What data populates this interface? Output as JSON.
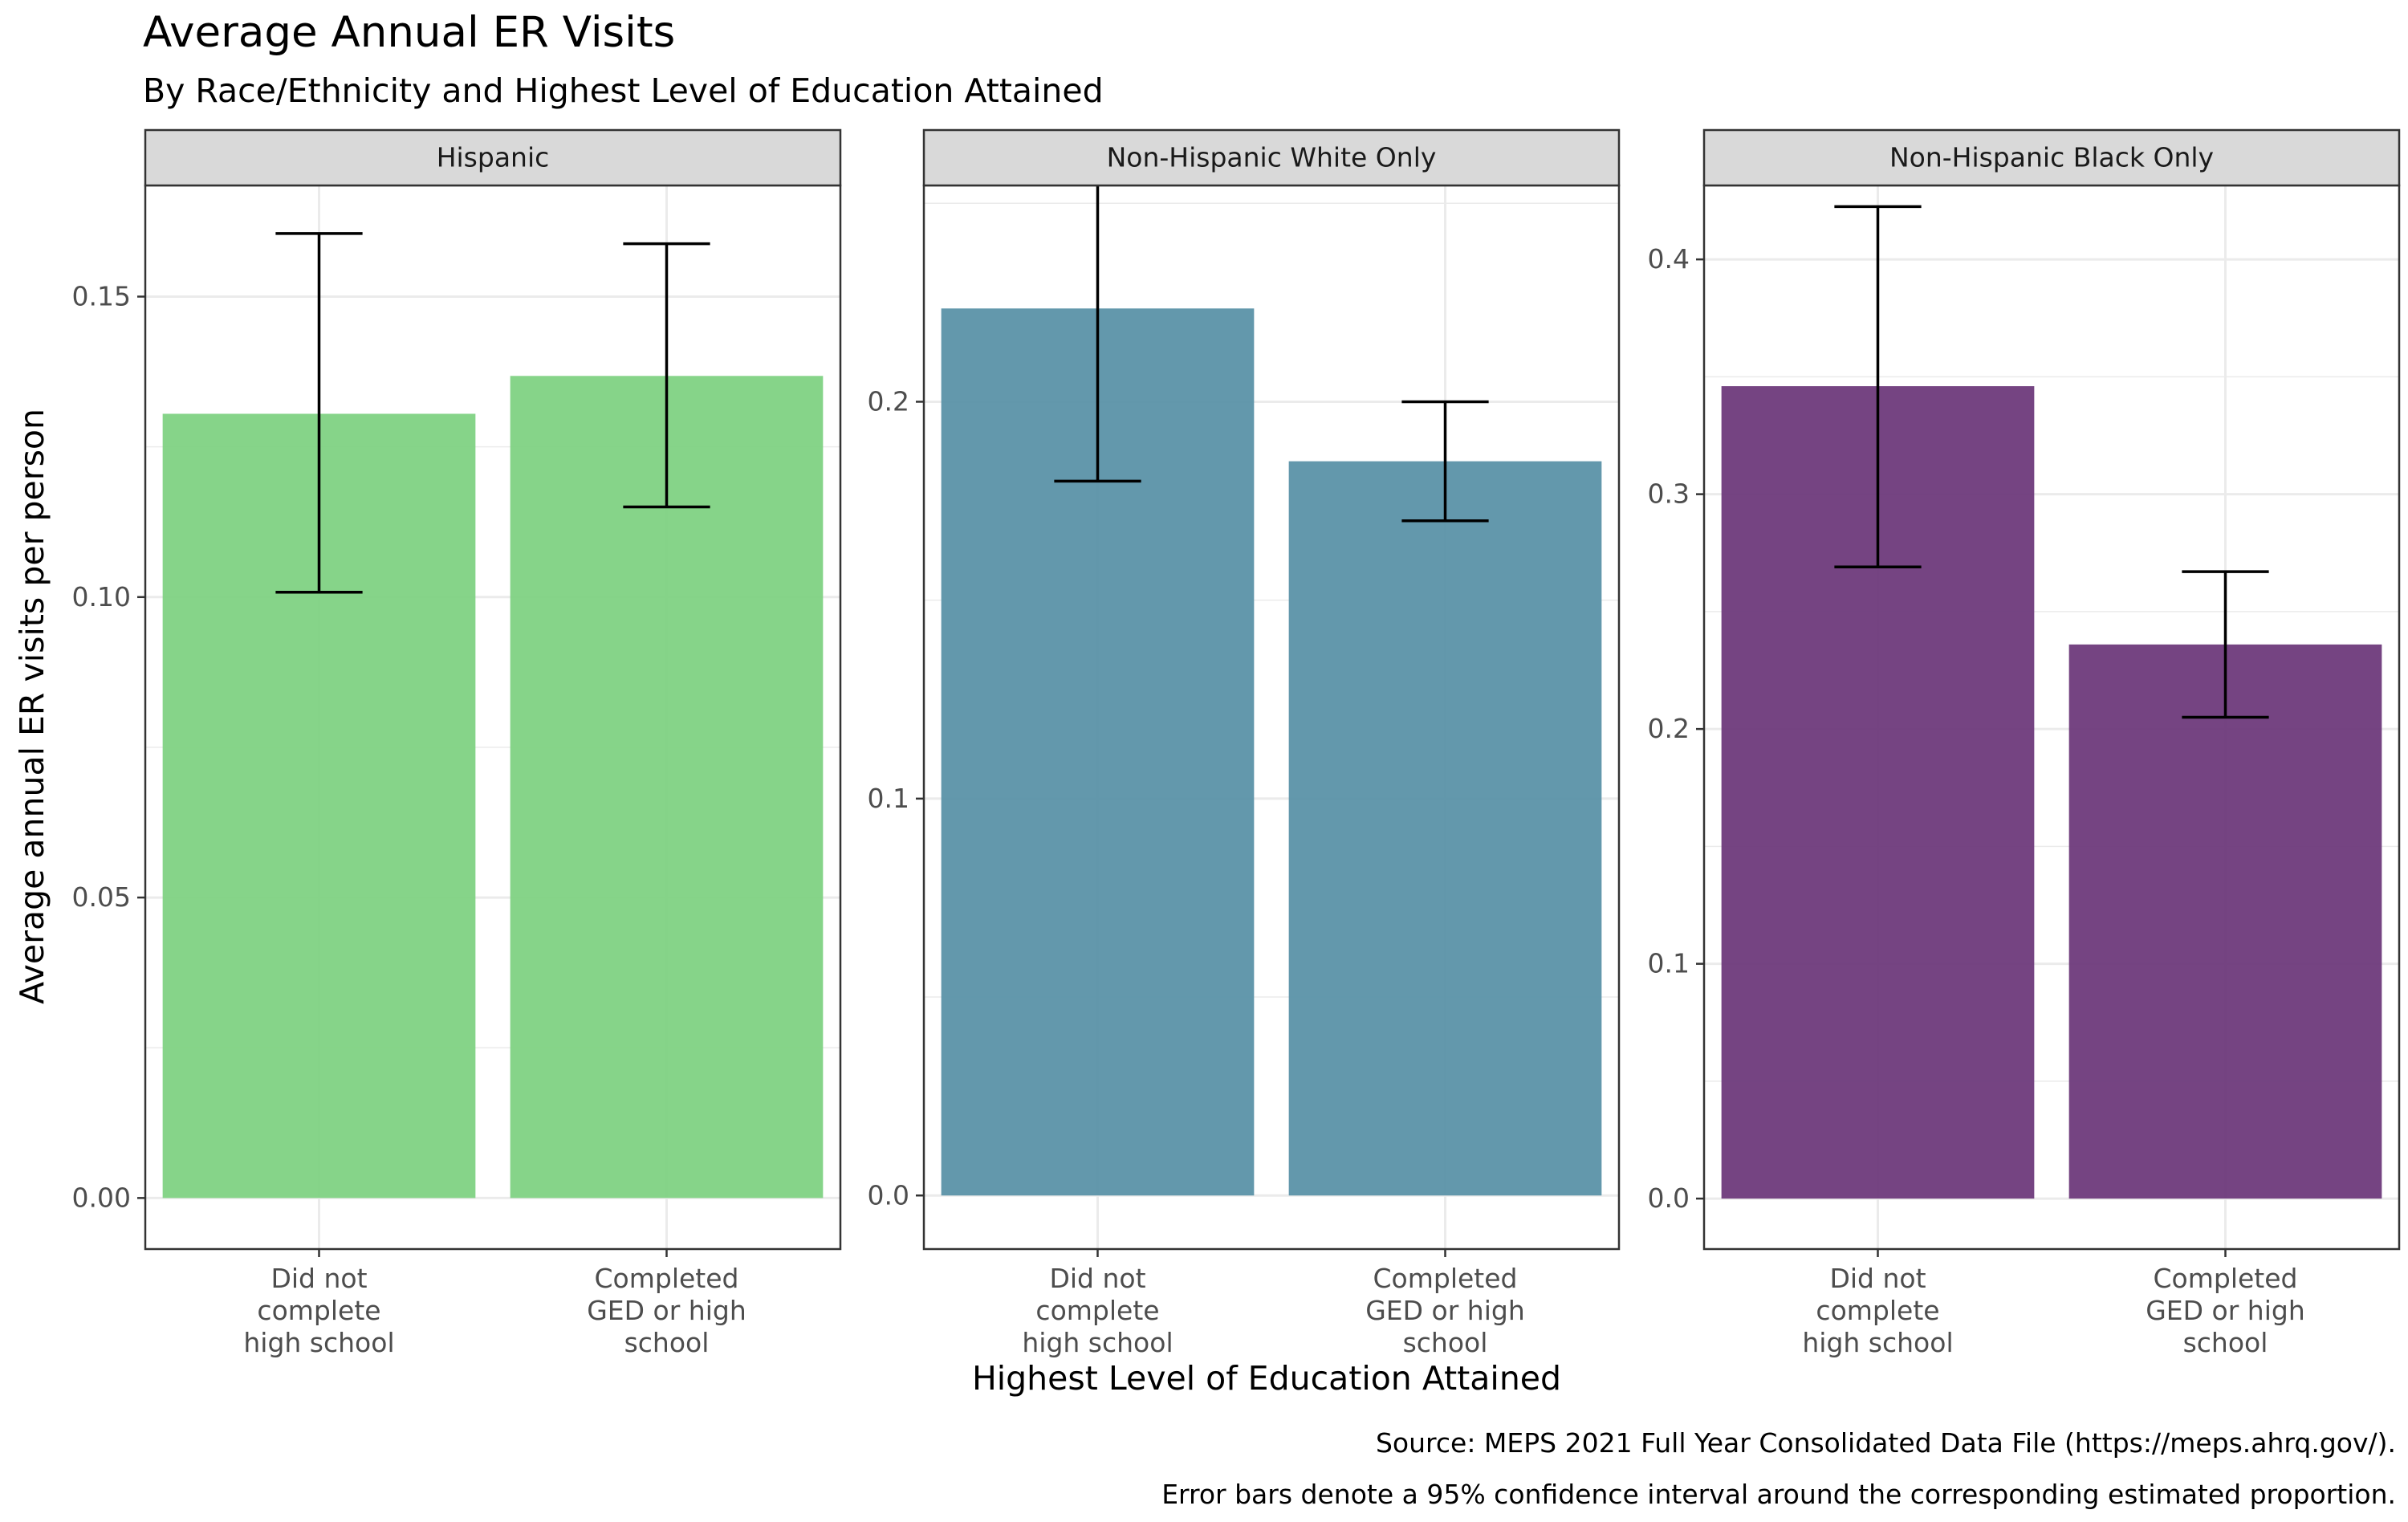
{
  "chart_data": {
    "type": "bar",
    "title": "Average Annual ER Visits",
    "subtitle": "By Race/Ethnicity and Highest Level of Education Attained",
    "xlabel": "Highest Level of Education Attained",
    "ylabel": "Average annual ER visits per person",
    "categories": [
      "Did not\ncomplete\nhigh school",
      "Completed\nGED or high\nschool"
    ],
    "captions": [
      "Source: MEPS 2021 Full Year Consolidated Data File (https://meps.ahrq.gov/).",
      "Error bars denote a 95% confidence interval around the corresponding estimated proportion."
    ],
    "grid": true,
    "legend": "none",
    "panels": [
      {
        "name": "Hispanic",
        "color": "#7fd283",
        "ylim": [
          -0.0085,
          0.1685
        ],
        "yticks": [
          0.0,
          0.05,
          0.1,
          0.15
        ],
        "ytick_labels": [
          "0.00",
          "0.05",
          "0.10",
          "0.15"
        ],
        "values": [
          0.1305,
          0.1368
        ],
        "ci_low": [
          0.1008,
          0.115
        ],
        "ci_high": [
          0.1605,
          0.1588
        ]
      },
      {
        "name": "Non-Hispanic White Only",
        "color": "#5b92a8",
        "ylim": [
          -0.0135,
          0.2545
        ],
        "yticks": [
          0.0,
          0.1,
          0.2
        ],
        "ytick_labels": [
          "0.0",
          "0.1",
          "0.2"
        ],
        "values": [
          0.2235,
          0.185
        ],
        "ci_low": [
          0.18,
          0.17
        ],
        "ci_high": [
          0.2673,
          0.2
        ]
      },
      {
        "name": "Non-Hispanic Black Only",
        "color": "#6e3a7b",
        "ylim": [
          -0.0215,
          0.4315
        ],
        "yticks": [
          0.0,
          0.1,
          0.2,
          0.3,
          0.4
        ],
        "ytick_labels": [
          "0.0",
          "0.1",
          "0.2",
          "0.3",
          "0.4"
        ],
        "values": [
          0.346,
          0.236
        ],
        "ci_low": [
          0.269,
          0.205
        ],
        "ci_high": [
          0.4225,
          0.267
        ]
      }
    ]
  }
}
